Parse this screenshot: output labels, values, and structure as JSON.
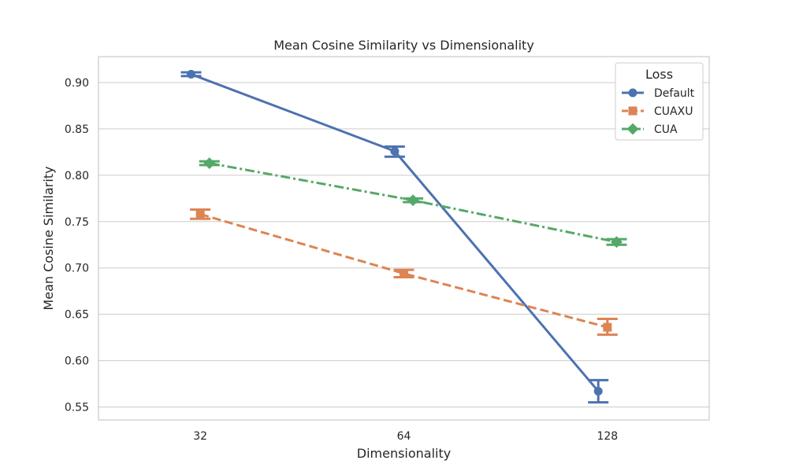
{
  "chart_data": {
    "type": "line",
    "title": "Mean Cosine Similarity vs Dimensionality",
    "xlabel": "Dimensionality",
    "ylabel": "Mean Cosine Similarity",
    "categories": [
      "32",
      "64",
      "128"
    ],
    "ylim": [
      0.536,
      0.928
    ],
    "yticks": [
      "0.55",
      "0.60",
      "0.65",
      "0.70",
      "0.75",
      "0.80",
      "0.85",
      "0.90"
    ],
    "grid": true,
    "legend": {
      "title": "Loss",
      "placement": "top-right"
    },
    "series": [
      {
        "name": "Default",
        "color": "#4c72b0",
        "marker": "circle",
        "linestyle": "solid",
        "values": [
          0.909,
          0.826,
          0.567
        ],
        "err_low": [
          0.907,
          0.82,
          0.555
        ],
        "err_high": [
          0.911,
          0.831,
          0.579
        ]
      },
      {
        "name": "CUAXU",
        "color": "#dd8452",
        "marker": "square",
        "linestyle": "dashed",
        "values": [
          0.758,
          0.694,
          0.636
        ],
        "err_low": [
          0.753,
          0.69,
          0.628
        ],
        "err_high": [
          0.763,
          0.698,
          0.645
        ]
      },
      {
        "name": "CUA",
        "color": "#55a868",
        "marker": "diamond",
        "linestyle": "dashdot",
        "values": [
          0.813,
          0.773,
          0.728
        ],
        "err_low": [
          0.811,
          0.771,
          0.725
        ],
        "err_high": [
          0.815,
          0.775,
          0.731
        ]
      }
    ]
  }
}
